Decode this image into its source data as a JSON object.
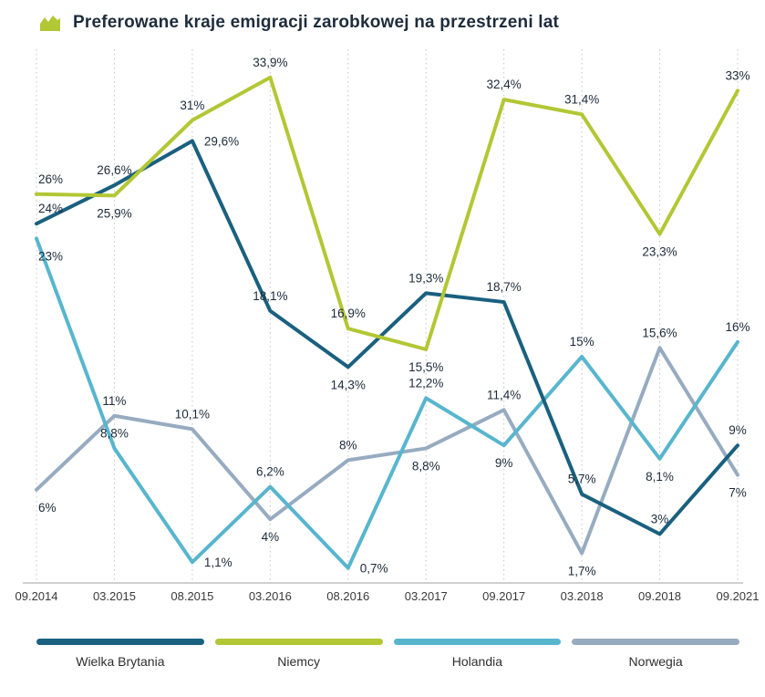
{
  "header": {
    "title": "Preferowane kraje emigracji zarobkowej na przestrzeni lat",
    "icon_color": "#b2c734"
  },
  "chart_data": {
    "type": "line",
    "title": "Preferowane kraje emigracji zarobkowej na przestrzeni lat",
    "categories": [
      "09.2014",
      "03.2015",
      "08.2015",
      "03.2016",
      "08.2016",
      "03.2017",
      "09.2017",
      "03.2018",
      "09.2018",
      "09.2021"
    ],
    "ylim": [
      0,
      36
    ],
    "grid": "vertical-dotted",
    "legend_position": "bottom",
    "value_suffix": "%",
    "decimal_separator": ",",
    "series": [
      {
        "name": "Wielka Brytania",
        "color": "#1a607f",
        "values": [
          24,
          26.6,
          29.6,
          18.1,
          14.3,
          19.3,
          18.7,
          5.7,
          3,
          9
        ],
        "labels": [
          "24%",
          "26,6%",
          "29,6%",
          "18,1%",
          "14,3%",
          "19,3%",
          "18,7%",
          "5,7%",
          "3%",
          "9%"
        ],
        "label_side": [
          "above",
          "above",
          "right",
          "above",
          "below",
          "above",
          "above",
          "above",
          "above",
          "above"
        ]
      },
      {
        "name": "Niemcy",
        "color": "#b2c734",
        "values": [
          26,
          25.9,
          31,
          33.9,
          16.9,
          15.5,
          32.4,
          31.4,
          23.3,
          33
        ],
        "labels": [
          "26%",
          "25,9%",
          "31%",
          "33,9%",
          "16,9%",
          "15,5%",
          "32,4%",
          "31,4%",
          "23,3%",
          "33%"
        ],
        "label_side": [
          "above",
          "below",
          "above",
          "above",
          "above",
          "below",
          "above",
          "above",
          "below",
          "above"
        ]
      },
      {
        "name": "Holandia",
        "color": "#58b5ce",
        "values": [
          23,
          8.8,
          1.1,
          6.2,
          0.7,
          12.2,
          9,
          15,
          8.1,
          16
        ],
        "labels": [
          "23%",
          "8,8%",
          "1,1%",
          "6,2%",
          "0,7%",
          "12,2%",
          "9%",
          "15%",
          "8,1%",
          "16%"
        ],
        "label_side": [
          "below",
          "above",
          "right",
          "above",
          "right",
          "above",
          "below",
          "above",
          "below",
          "above"
        ]
      },
      {
        "name": "Norwegia",
        "color": "#97abc0",
        "values": [
          6,
          11,
          10.1,
          4,
          8,
          8.8,
          11.4,
          1.7,
          15.6,
          7
        ],
        "labels": [
          "6%",
          "11%",
          "10,1%",
          "4%",
          "8%",
          "8,8%",
          "11,4%",
          "1,7%",
          "15,6%",
          "7%"
        ],
        "label_side": [
          "below",
          "above",
          "above",
          "below",
          "above",
          "below",
          "above",
          "below",
          "above",
          "below"
        ]
      }
    ]
  }
}
